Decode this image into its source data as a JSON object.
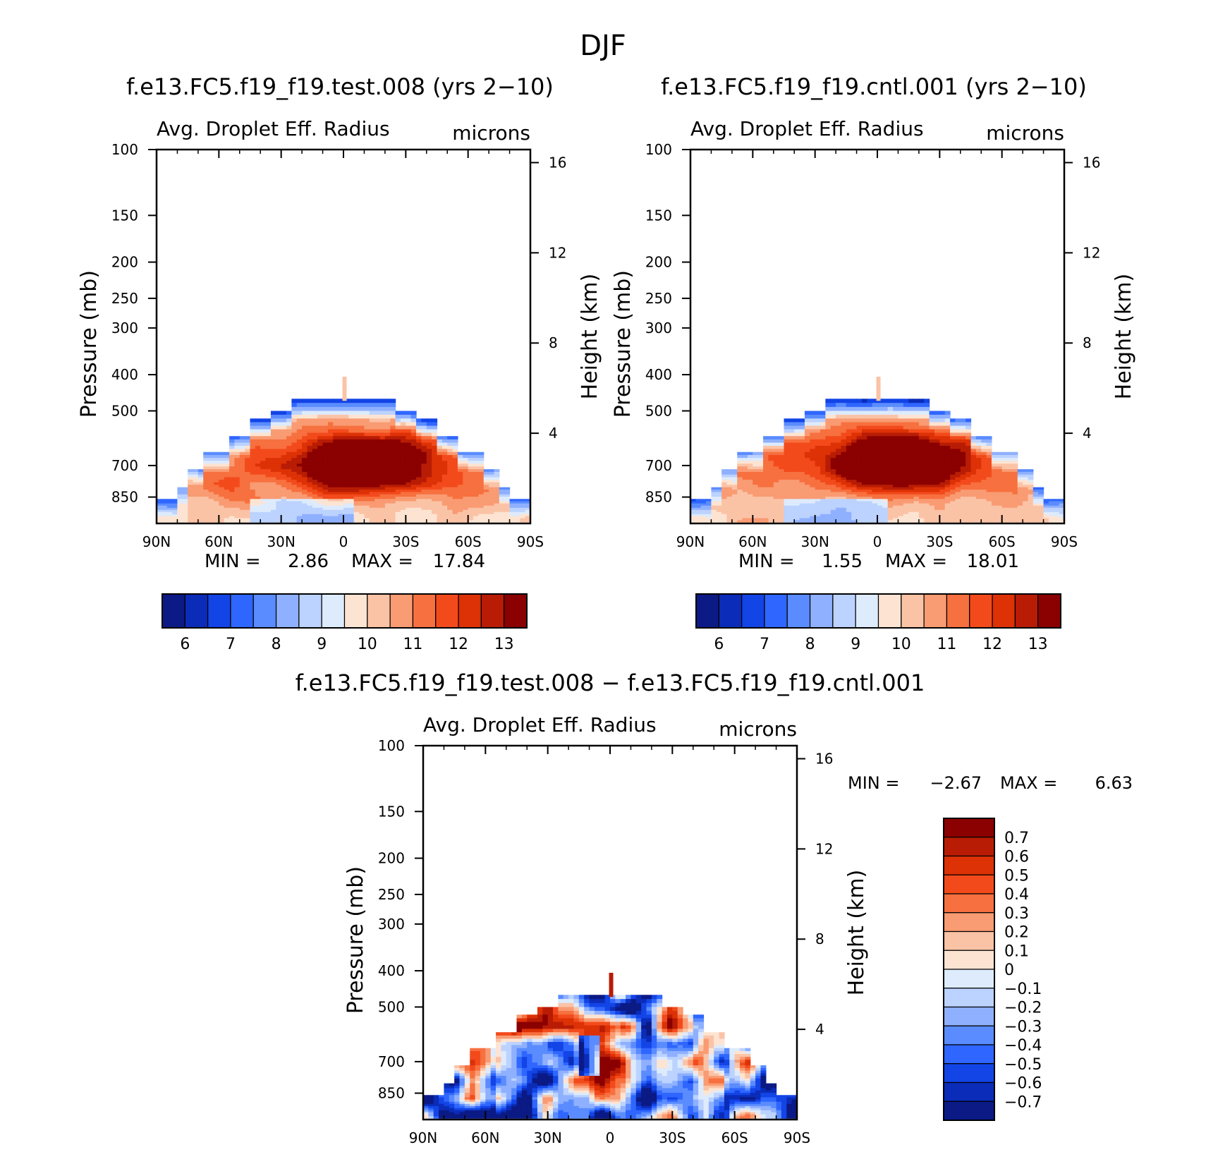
{
  "figure": {
    "title": "DJF"
  },
  "chart_data": [
    {
      "type": "heatmap",
      "title": "f.e13.FC5.f19_f19.test.008 (yrs 2−10)",
      "variable": "Avg. Droplet Eff. Radius",
      "units": "microns",
      "ylabel": "Pressure (mb)",
      "y2label": "Height (km)",
      "x_ticks": [
        "90N",
        "60N",
        "30N",
        "0",
        "30S",
        "60S",
        "90S"
      ],
      "y_ticks": [
        "100",
        "150",
        "200",
        "250",
        "300",
        "400",
        "500",
        "700",
        "850"
      ],
      "y2_ticks": [
        "16",
        "12",
        "8",
        "4"
      ],
      "ylim": [
        1000,
        100
      ],
      "y_scale": "log",
      "stats": {
        "min_label": "MIN =",
        "min": "2.86",
        "max_label": "MAX =",
        "max": "17.84"
      },
      "colorbar": {
        "orientation": "horizontal",
        "labels": [
          "6",
          "7",
          "8",
          "9",
          "10",
          "11",
          "12",
          "13"
        ],
        "colors": [
          "#0b1a85",
          "#0a2cb8",
          "#1244e6",
          "#2f66ff",
          "#5a8cff",
          "#8fb0ff",
          "#bcd2ff",
          "#ddebfc",
          "#fde4d2",
          "#fbc3a6",
          "#f99b73",
          "#f7703f",
          "#f34a1c",
          "#dd3106",
          "#b81c04",
          "#8b0000"
        ]
      },
      "field": {
        "peak": 17.84,
        "peak_lat": -10,
        "peak_p": 690,
        "secondary": 11.5,
        "secondary_lat": 55,
        "secondary_p": 760,
        "edge": 8.5,
        "top_p": 470
      }
    },
    {
      "type": "heatmap",
      "title": "f.e13.FC5.f19_f19.cntl.001 (yrs 2−10)",
      "variable": "Avg. Droplet Eff. Radius",
      "units": "microns",
      "ylabel": "Pressure (mb)",
      "y2label": "Height (km)",
      "x_ticks": [
        "90N",
        "60N",
        "30N",
        "0",
        "30S",
        "60S",
        "90S"
      ],
      "y_ticks": [
        "100",
        "150",
        "200",
        "250",
        "300",
        "400",
        "500",
        "700",
        "850"
      ],
      "y2_ticks": [
        "16",
        "12",
        "8",
        "4"
      ],
      "ylim": [
        1000,
        100
      ],
      "y_scale": "log",
      "stats": {
        "min_label": "MIN =",
        "min": "1.55",
        "max_label": "MAX =",
        "max": "18.01"
      },
      "colorbar": {
        "orientation": "horizontal",
        "labels": [
          "6",
          "7",
          "8",
          "9",
          "10",
          "11",
          "12",
          "13"
        ],
        "colors": [
          "#0b1a85",
          "#0a2cb8",
          "#1244e6",
          "#2f66ff",
          "#5a8cff",
          "#8fb0ff",
          "#bcd2ff",
          "#ddebfc",
          "#fde4d2",
          "#fbc3a6",
          "#f99b73",
          "#f7703f",
          "#f34a1c",
          "#dd3106",
          "#b81c04",
          "#8b0000"
        ]
      },
      "field": {
        "peak": 18.01,
        "peak_lat": -10,
        "peak_p": 680,
        "secondary": 11.3,
        "secondary_lat": 55,
        "secondary_p": 760,
        "edge": 8.3,
        "top_p": 470
      }
    },
    {
      "type": "heatmap",
      "title": "f.e13.FC5.f19_f19.test.008 − f.e13.FC5.f19_f19.cntl.001",
      "variable": "Avg. Droplet Eff. Radius",
      "units": "microns",
      "ylabel": "Pressure (mb)",
      "y2label": "Height (km)",
      "x_ticks": [
        "90N",
        "60N",
        "30N",
        "0",
        "30S",
        "60S",
        "90S"
      ],
      "y_ticks": [
        "100",
        "150",
        "200",
        "250",
        "300",
        "400",
        "500",
        "700",
        "850"
      ],
      "y2_ticks": [
        "16",
        "12",
        "8",
        "4"
      ],
      "ylim": [
        1000,
        100
      ],
      "y_scale": "log",
      "stats": {
        "min_label": "MIN =",
        "min": "−2.67",
        "max_label": "MAX =",
        "max": "6.63"
      },
      "colorbar": {
        "orientation": "vertical",
        "labels": [
          "0.7",
          "0.6",
          "0.5",
          "0.4",
          "0.3",
          "0.2",
          "0.1",
          "0",
          "−0.1",
          "−0.2",
          "−0.3",
          "−0.4",
          "−0.5",
          "−0.6",
          "−0.7"
        ],
        "colors": [
          "#8b0000",
          "#b81c04",
          "#dd3106",
          "#f34a1c",
          "#f7703f",
          "#f99b73",
          "#fbc3a6",
          "#fde4d2",
          "#ddebfc",
          "#bcd2ff",
          "#8fb0ff",
          "#5a8cff",
          "#2f66ff",
          "#1244e6",
          "#0a2cb8",
          "#0b1a85"
        ]
      },
      "field": {
        "top_p": 470,
        "amplitude": 0.8
      }
    }
  ]
}
